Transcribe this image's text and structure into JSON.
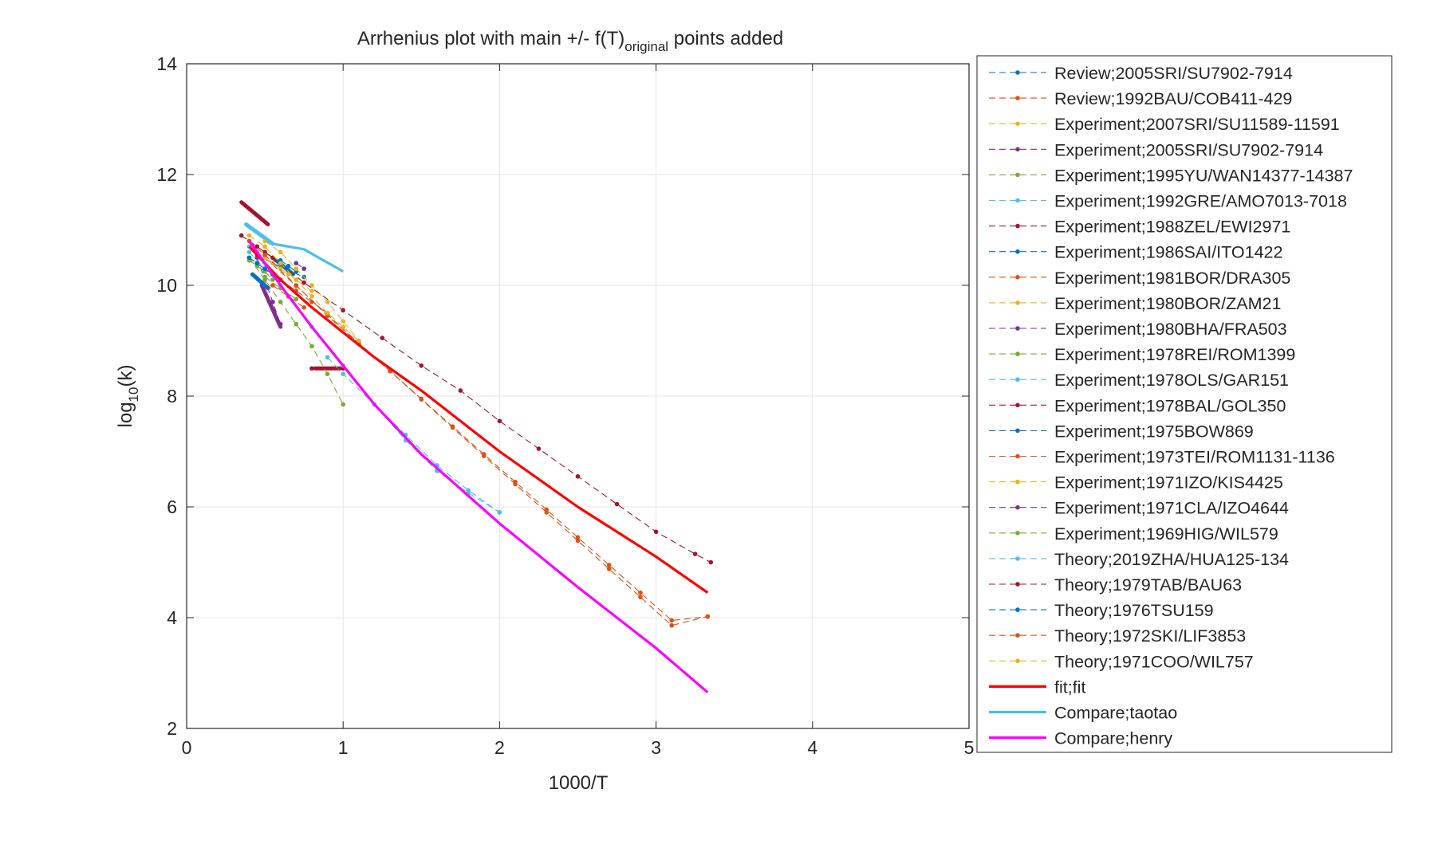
{
  "chart_data": {
    "type": "line",
    "title": {
      "main": "Arrhenius plot with main +/- f(T)",
      "subscript": "original",
      "suffix": " points added"
    },
    "xlabel": "1000/T",
    "ylabel": {
      "base": "log",
      "subscript": "10",
      "suffix": "(k)"
    },
    "xlim": [
      0,
      5
    ],
    "ylim": [
      2,
      14
    ],
    "xticks": [
      0,
      1,
      2,
      3,
      4,
      5
    ],
    "yticks": [
      2,
      4,
      6,
      8,
      10,
      12,
      14
    ],
    "grid": true,
    "legend_position": "outside-right",
    "series": [
      {
        "name": "Review;2005SRI/SU7902-7914",
        "color": "#0072BD",
        "style": "dashed-dots",
        "x": [
          0.45,
          0.55,
          0.65,
          0.75
        ],
        "y": [
          10.55,
          10.4,
          10.27,
          10.15
        ]
      },
      {
        "name": "Review;1992BAU/COB411-429",
        "color": "#D95319",
        "style": "dashed-dots",
        "x": [
          0.5,
          0.7,
          0.9,
          1.1,
          1.3,
          1.5,
          1.7,
          1.9,
          2.1,
          2.3,
          2.5,
          2.7,
          2.9,
          3.1,
          3.33
        ],
        "y": [
          10.5,
          9.99,
          9.47,
          8.96,
          8.45,
          7.94,
          7.43,
          6.92,
          6.41,
          5.9,
          5.39,
          4.88,
          4.37,
          3.86,
          4.02
        ]
      },
      {
        "name": "Experiment;2007SRI/SU11589-11591",
        "color": "#EDB120",
        "style": "dashed-dots",
        "x": [
          0.5,
          0.6,
          0.7,
          0.8
        ],
        "y": [
          10.5,
          10.3,
          10.1,
          9.9
        ]
      },
      {
        "name": "Experiment;2005SRI/SU7902-7914",
        "color": "#7E2F8E",
        "style": "dashed-dots",
        "x": [
          0.45,
          0.5,
          0.55,
          0.6
        ],
        "y": [
          10.5,
          10.1,
          9.7,
          9.3
        ]
      },
      {
        "name": "Experiment;1995YU/WAN14377-14387",
        "color": "#77AC30",
        "style": "dashed-dots",
        "x": [
          0.4,
          0.5,
          0.6,
          0.7,
          0.8,
          0.9,
          1.0
        ],
        "y": [
          10.5,
          10.1,
          9.7,
          9.3,
          8.9,
          8.4,
          7.85
        ]
      },
      {
        "name": "Experiment;1992GRE/AMO7013-7018",
        "color": "#4DBEEE",
        "style": "dashed-dots",
        "x": [
          0.4,
          0.5,
          0.6
        ],
        "y": [
          10.6,
          10.3,
          10.0
        ]
      },
      {
        "name": "Experiment;1988ZEL/EWI2971",
        "color": "#A2142F",
        "style": "dashed-dots",
        "x": [
          0.35,
          0.45,
          0.55
        ],
        "y": [
          10.9,
          10.7,
          10.5
        ]
      },
      {
        "name": "Experiment;1986SAI/ITO1422",
        "color": "#0072BD",
        "style": "dashed-dots",
        "x": [
          0.6,
          0.65,
          0.7
        ],
        "y": [
          10.45,
          10.35,
          10.25
        ]
      },
      {
        "name": "Experiment;1981BOR/DRA305",
        "color": "#D95319",
        "style": "dashed-dots",
        "x": [
          0.6,
          0.7,
          0.8,
          0.9
        ],
        "y": [
          10.1,
          9.9,
          9.7,
          9.5
        ]
      },
      {
        "name": "Experiment;1980BOR/ZAM21",
        "color": "#EDB120",
        "style": "dashed-dots",
        "x": [
          0.5,
          0.6,
          0.7,
          0.8,
          0.9,
          1.0,
          1.1
        ],
        "y": [
          10.8,
          10.6,
          10.3,
          10.0,
          9.7,
          9.35,
          9.0
        ]
      },
      {
        "name": "Experiment;1980BHA/FRA503",
        "color": "#7E2F8E",
        "style": "dashed-dots",
        "x": [
          0.7,
          0.75
        ],
        "y": [
          10.4,
          10.3
        ]
      },
      {
        "name": "Experiment;1978REI/ROM1399",
        "color": "#77AC30",
        "style": "dashed-dots",
        "x": [
          0.4,
          0.45,
          0.5,
          0.55
        ],
        "y": [
          10.45,
          10.35,
          10.25,
          10.1
        ]
      },
      {
        "name": "Experiment;1978OLS/GAR151",
        "color": "#4DBEEE",
        "style": "dashed-dots",
        "x": [
          0.9,
          1.0,
          1.2,
          1.4,
          1.6,
          1.8,
          2.0
        ],
        "y": [
          8.7,
          8.4,
          7.85,
          7.3,
          6.75,
          6.3,
          5.9
        ]
      },
      {
        "name": "Experiment;1978BAL/GOL350",
        "color": "#A2142F",
        "style": "dashed-dots",
        "x": [
          0.8,
          1.0
        ],
        "y": [
          8.5,
          8.5
        ]
      },
      {
        "name": "Experiment;1975BOW869",
        "color": "#0072BD",
        "style": "dashed-dots",
        "x": [
          0.45,
          0.5,
          0.55
        ],
        "y": [
          10.4,
          10.3,
          10.2
        ]
      },
      {
        "name": "Experiment;1973TEI/ROM1131-1136",
        "color": "#D95319",
        "style": "dashed-dots",
        "x": [
          0.55,
          0.65,
          0.75
        ],
        "y": [
          10.0,
          9.8,
          9.6
        ]
      },
      {
        "name": "Experiment;1971IZO/KIS4425",
        "color": "#EDB120",
        "style": "dashed-dots",
        "x": [
          0.45,
          0.55,
          0.65
        ],
        "y": [
          10.6,
          10.4,
          10.2
        ]
      },
      {
        "name": "Experiment;1971CLA/IZO4644",
        "color": "#7E2F8E",
        "style": "dashed-dots",
        "x": [
          0.5,
          0.6
        ],
        "y": [
          10.3,
          10.1
        ]
      },
      {
        "name": "Experiment;1969HIG/WIL579",
        "color": "#77AC30",
        "style": "dashed-dots",
        "x": [
          0.5,
          0.6,
          0.7
        ],
        "y": [
          10.15,
          9.95,
          9.75
        ]
      },
      {
        "name": "Theory;2019ZHA/HUA125-134",
        "color": "#4DBEEE",
        "style": "dashed-dots",
        "x": [
          0.4,
          0.6,
          0.8,
          1.0,
          1.2,
          1.4,
          1.6,
          1.8,
          2.0
        ],
        "y": [
          10.7,
          10.0,
          9.25,
          8.55,
          7.85,
          7.2,
          6.65,
          6.25,
          5.9
        ]
      },
      {
        "name": "Theory;1979TAB/BAU63",
        "color": "#A2142F",
        "style": "dashed-dots",
        "x": [
          0.5,
          0.75,
          1.0,
          1.25,
          1.5,
          1.75,
          2.0,
          2.25,
          2.5,
          2.75,
          3.0,
          3.25,
          3.35
        ],
        "y": [
          10.6,
          10.05,
          9.55,
          9.05,
          8.55,
          8.1,
          7.55,
          7.05,
          6.55,
          6.05,
          5.55,
          5.15,
          5.0
        ]
      },
      {
        "name": "Theory;1976TSU159",
        "color": "#0072BD",
        "style": "dashed-dots",
        "x": [
          0.4,
          0.45,
          0.5,
          0.55
        ],
        "y": [
          10.5,
          10.4,
          10.3,
          10.2
        ]
      },
      {
        "name": "Theory;1972SKI/LIF3853",
        "color": "#D95319",
        "style": "dashed-dots",
        "x": [
          0.4,
          0.5,
          0.7,
          0.9,
          1.1,
          1.3,
          1.5,
          1.7,
          1.9,
          2.1,
          2.3,
          2.5,
          2.7,
          2.9,
          3.1,
          3.33
        ],
        "y": [
          10.8,
          10.55,
          10.0,
          9.45,
          8.95,
          8.45,
          7.95,
          7.45,
          6.95,
          6.45,
          5.95,
          5.45,
          4.95,
          4.45,
          3.95,
          4.02
        ]
      },
      {
        "name": "Theory;1971COO/WIL757",
        "color": "#EDB120",
        "style": "dashed-dots",
        "x": [
          0.4,
          0.5,
          0.6,
          0.7,
          0.8,
          0.9,
          1.0,
          1.1
        ],
        "y": [
          10.9,
          10.7,
          10.4,
          10.1,
          9.8,
          9.5,
          9.25,
          9.0
        ]
      },
      {
        "name": "fit;fit",
        "color": "#FF0000",
        "style": "solid",
        "x": [
          0.4,
          0.6,
          0.8,
          1.0,
          1.2,
          1.5,
          2.0,
          2.5,
          3.0,
          3.33
        ],
        "y": [
          10.7,
          10.1,
          9.6,
          9.15,
          8.7,
          8.1,
          7.0,
          6.0,
          5.1,
          4.45
        ]
      },
      {
        "name": "Compare;taotao",
        "color": "#4DBEEE",
        "style": "solid",
        "x": [
          0.38,
          0.55,
          0.75,
          1.0
        ],
        "y": [
          11.1,
          10.75,
          10.65,
          10.25
        ]
      },
      {
        "name": "Compare;henry",
        "color": "#FF00FF",
        "style": "solid",
        "x": [
          0.4,
          0.6,
          0.8,
          1.0,
          1.2,
          1.5,
          2.0,
          2.5,
          3.0,
          3.33
        ],
        "y": [
          10.8,
          10.0,
          9.25,
          8.55,
          7.85,
          6.95,
          5.7,
          4.55,
          3.45,
          2.65
        ]
      }
    ],
    "extra_marks": [
      {
        "color": "#A2142F",
        "x": [
          0.35,
          0.52
        ],
        "y": [
          11.5,
          11.1
        ]
      },
      {
        "color": "#4DBEEE",
        "x": [
          0.38,
          0.55
        ],
        "y": [
          11.1,
          10.75
        ]
      },
      {
        "color": "#7E2F8E",
        "x": [
          0.48,
          0.6
        ],
        "y": [
          10.0,
          9.25
        ]
      },
      {
        "color": "#0072BD",
        "x": [
          0.42,
          0.52
        ],
        "y": [
          10.2,
          9.95
        ]
      },
      {
        "color": "#0072BD",
        "x": [
          0.55,
          0.68
        ],
        "y": [
          10.5,
          10.2
        ]
      },
      {
        "color": "#A2142F",
        "x": [
          0.82,
          0.98
        ],
        "y": [
          8.5,
          8.5
        ]
      }
    ]
  }
}
